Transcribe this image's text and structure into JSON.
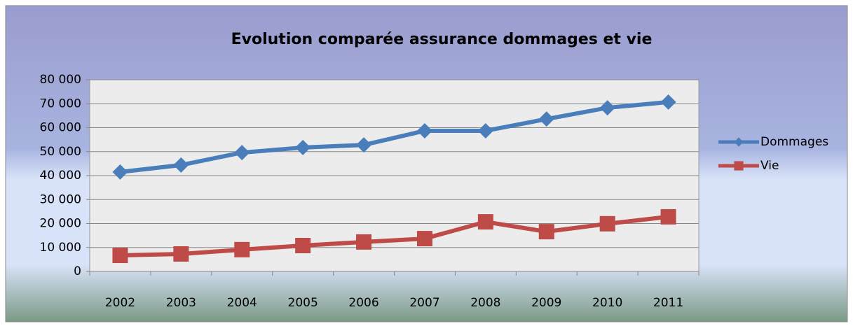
{
  "chart_data": {
    "type": "line",
    "title": "Evolution comparée assurance dommages et vie",
    "categories": [
      "2002",
      "2003",
      "2004",
      "2005",
      "2006",
      "2007",
      "2008",
      "2009",
      "2010",
      "2011"
    ],
    "series": [
      {
        "name": "Dommages",
        "color": "#4a7ebb",
        "values": [
          41500,
          44400,
          49600,
          51700,
          52800,
          58700,
          58700,
          63600,
          68300,
          70700
        ]
      },
      {
        "name": "Vie",
        "color": "#be4b48",
        "values": [
          6700,
          7300,
          9100,
          10800,
          12300,
          13700,
          20700,
          16600,
          19900,
          22800
        ]
      }
    ],
    "ylim": [
      0,
      80000
    ],
    "yticks": [
      {
        "value": 0,
        "label": "0"
      },
      {
        "value": 10000,
        "label": "10 000"
      },
      {
        "value": 20000,
        "label": "20 000"
      },
      {
        "value": 30000,
        "label": "30 000"
      },
      {
        "value": 40000,
        "label": "40 000"
      },
      {
        "value": 50000,
        "label": "50 000"
      },
      {
        "value": 60000,
        "label": "60 000"
      },
      {
        "value": 70000,
        "label": "70 000"
      },
      {
        "value": 80000,
        "label": "80 000"
      }
    ],
    "grid": true,
    "legend": "right"
  }
}
